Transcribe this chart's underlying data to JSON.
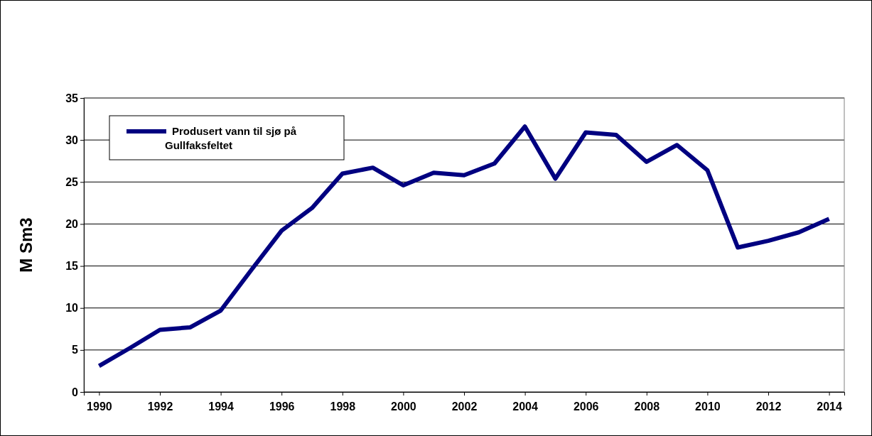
{
  "chart_data": {
    "type": "line",
    "ylabel": "M Sm3",
    "x": [
      1990,
      1991,
      1992,
      1993,
      1994,
      1995,
      1996,
      1997,
      1998,
      1999,
      2000,
      2001,
      2002,
      2003,
      2004,
      2005,
      2006,
      2007,
      2008,
      2009,
      2010,
      2011,
      2012,
      2013,
      2014
    ],
    "series": [
      {
        "name": "Produsert vann til sjø på Gullfaksfeltet",
        "color": "#000080",
        "values": [
          3.1,
          5.2,
          7.4,
          7.7,
          9.7,
          14.5,
          19.2,
          21.9,
          26.0,
          26.7,
          24.6,
          26.1,
          25.8,
          27.2,
          31.6,
          25.4,
          30.9,
          30.6,
          27.4,
          29.4,
          26.4,
          17.2,
          18.0,
          19.0,
          20.6
        ]
      }
    ],
    "xlim": [
      1989.5,
      2014.5
    ],
    "xticks": [
      1990,
      1992,
      1994,
      1996,
      1998,
      2000,
      2002,
      2004,
      2006,
      2008,
      2010,
      2012,
      2014
    ],
    "ylim": [
      0,
      35
    ],
    "yticks": [
      0,
      5,
      10,
      15,
      20,
      25,
      30,
      35
    ],
    "grid": "y",
    "legend": "top left",
    "marker": "none",
    "line_style": "solid"
  }
}
